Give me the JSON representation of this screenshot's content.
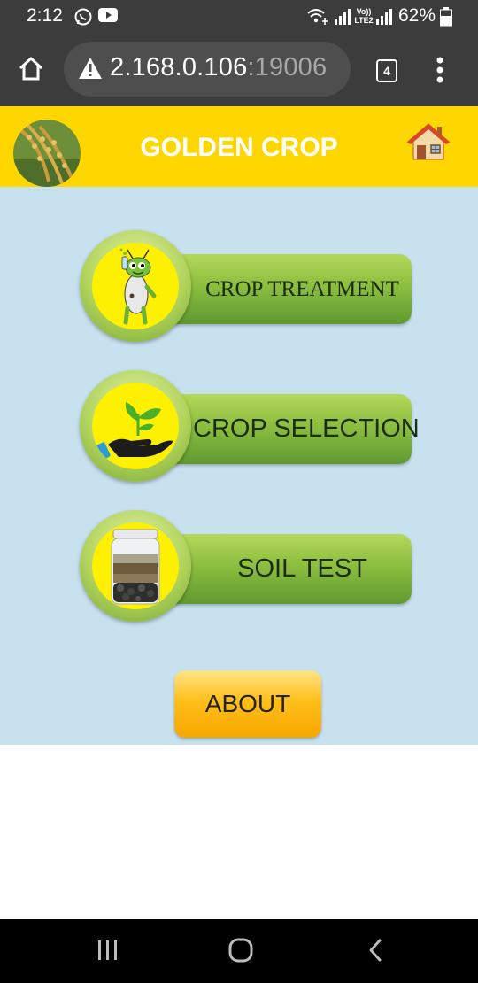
{
  "status_bar": {
    "time": "2:12",
    "network_label": "Vo)) LTE2",
    "battery": "62%"
  },
  "browser": {
    "url_host": "2.168.0.106",
    "url_port": ":19006",
    "tab_count": "4",
    "security_icon": "warning-icon"
  },
  "app": {
    "title": "GOLDEN CROP",
    "header_color": "#ffd700",
    "background_color": "#c8e1ef"
  },
  "menu": {
    "items": [
      {
        "label": "CROP TREATMENT",
        "icon": "ant-scientist-icon"
      },
      {
        "label": "CROP SELECTION",
        "icon": "hand-with-plant-icon"
      },
      {
        "label": "SOIL TEST",
        "icon": "soil-jar-icon"
      }
    ],
    "about_label": "ABOUT"
  },
  "nav": {
    "buttons": [
      "recent-apps-icon",
      "home-icon",
      "back-icon"
    ]
  }
}
